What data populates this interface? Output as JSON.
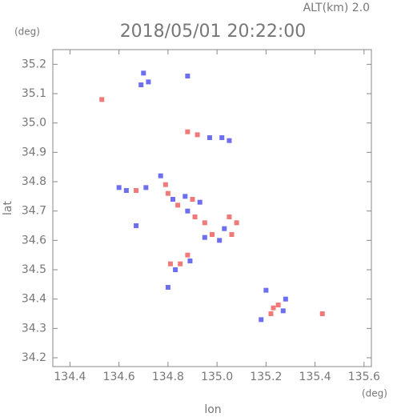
{
  "chart_data": {
    "type": "scatter",
    "annotation": "ALT(km) 2.0",
    "title": "2018/05/01 20:22:00",
    "y_unit": "(deg)",
    "x_unit": "(deg)",
    "xlabel": "lon",
    "ylabel": "lat",
    "xlim": [
      134.33,
      135.63
    ],
    "ylim": [
      34.17,
      35.25
    ],
    "xticks": [
      134.4,
      134.6,
      134.8,
      {
        "value": 135,
        "label": "135.0"
      },
      135.2,
      135.4,
      135.6
    ],
    "yticks": [
      34.2,
      34.3,
      34.4,
      34.5,
      34.6,
      34.7,
      34.8,
      34.9,
      {
        "value": 35,
        "label": "35.0"
      },
      35.1,
      35.2
    ],
    "series": [
      {
        "color": "#f07a7a",
        "x": [
          134.53,
          134.88,
          134.92,
          134.67,
          134.79,
          134.8,
          134.84,
          134.9,
          134.91,
          134.95,
          135.05,
          135.08,
          134.98,
          135.06,
          134.88,
          134.85,
          134.81,
          135.23,
          135.25,
          135.22,
          135.43
        ],
        "values": [
          35.08,
          34.97,
          34.96,
          34.77,
          34.79,
          34.76,
          34.72,
          34.74,
          34.68,
          34.66,
          34.68,
          34.66,
          34.62,
          34.62,
          34.55,
          34.52,
          34.52,
          34.37,
          34.38,
          34.35,
          34.35
        ]
      },
      {
        "color": "#6e6ef0",
        "x": [
          134.7,
          134.72,
          134.69,
          134.88,
          134.97,
          135.02,
          135.05,
          134.6,
          134.63,
          134.71,
          134.77,
          134.82,
          134.87,
          134.93,
          134.88,
          135.03,
          134.95,
          135.01,
          134.83,
          134.89,
          134.8,
          134.67,
          135.2,
          135.28,
          135.27,
          135.18
        ],
        "values": [
          35.17,
          35.14,
          35.13,
          35.16,
          34.95,
          34.95,
          34.94,
          34.78,
          34.77,
          34.78,
          34.82,
          34.74,
          34.75,
          34.73,
          34.7,
          34.64,
          34.61,
          34.6,
          34.5,
          34.53,
          34.44,
          34.65,
          34.43,
          34.4,
          34.36,
          34.33
        ]
      }
    ]
  }
}
